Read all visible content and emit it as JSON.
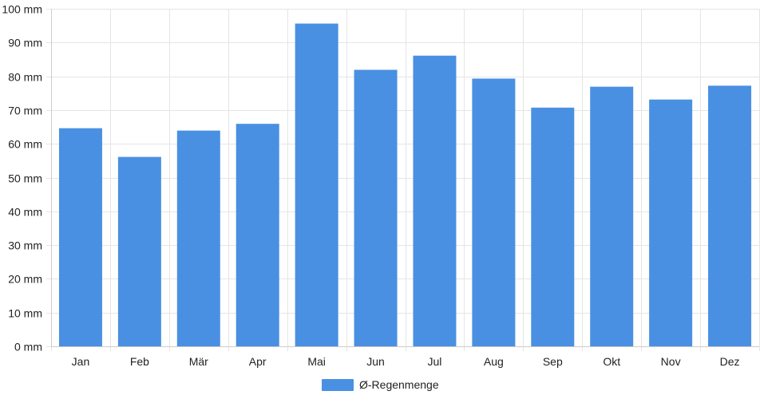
{
  "chart_data": {
    "type": "bar",
    "title": "",
    "xlabel": "",
    "ylabel": "",
    "unit": "mm",
    "categories": [
      "Jan",
      "Feb",
      "Mär",
      "Apr",
      "Mai",
      "Jun",
      "Jul",
      "Aug",
      "Sep",
      "Okt",
      "Nov",
      "Dez"
    ],
    "series": [
      {
        "name": "Ø-Regenmenge",
        "color": "#4a90e2",
        "values": [
          64.5,
          56,
          63.8,
          65.8,
          95.5,
          81.8,
          86,
          79.2,
          70.6,
          76.8,
          73,
          77.1
        ]
      }
    ],
    "ylim": [
      0,
      100
    ],
    "yticks": [
      "0 mm",
      "10 mm",
      "20 mm",
      "30 mm",
      "40 mm",
      "50 mm",
      "60 mm",
      "70 mm",
      "80 mm",
      "90 mm",
      "100 mm"
    ],
    "grid": true,
    "legend": "bottom-center",
    "colors": {
      "bar": "#4a90e2",
      "grid": "#e5e5e5",
      "axis": "#cccccc",
      "text": "#222222"
    }
  }
}
